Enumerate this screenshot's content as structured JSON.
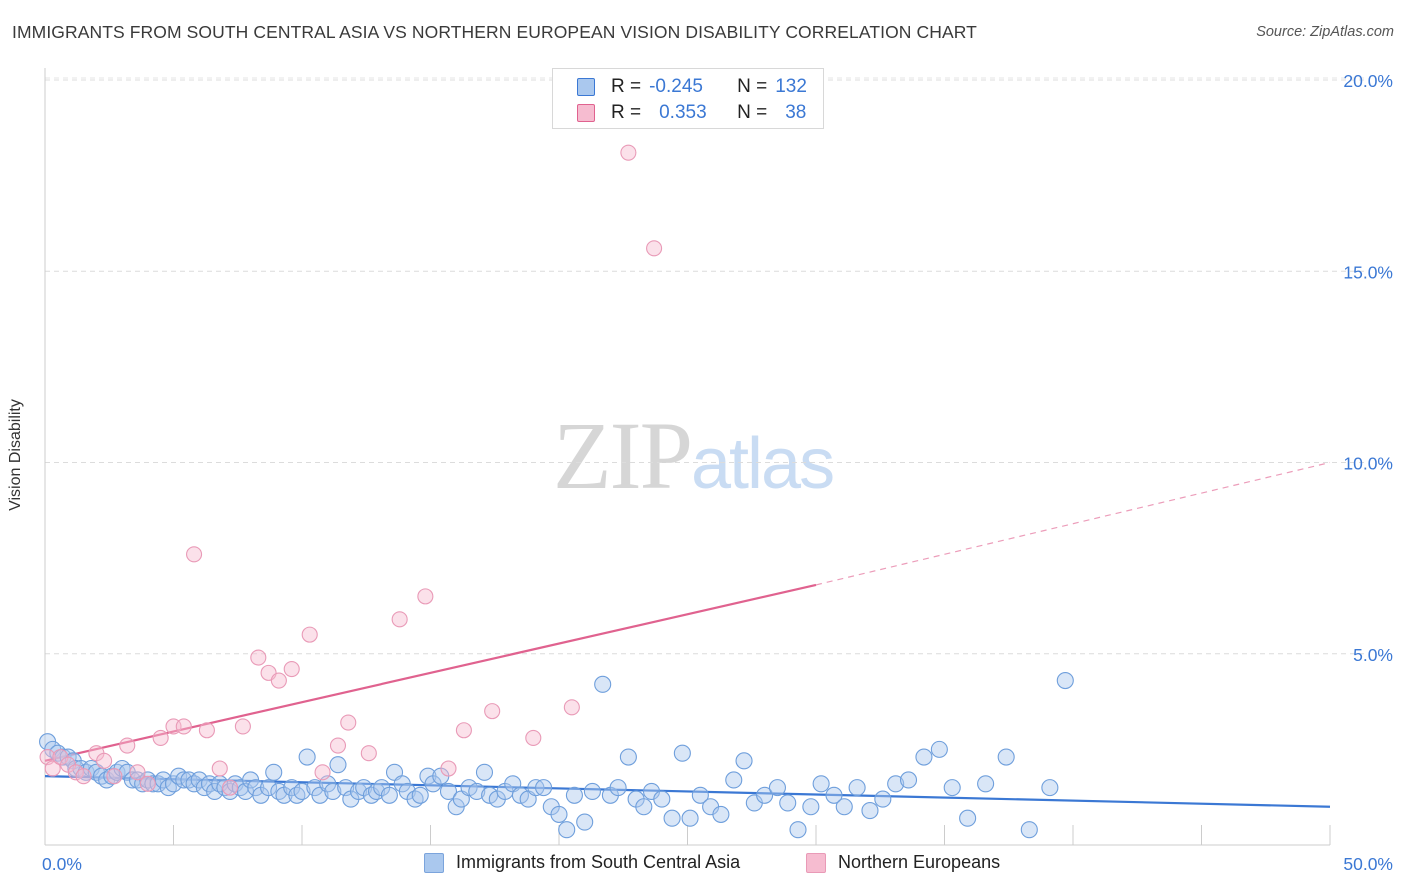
{
  "title": "IMMIGRANTS FROM SOUTH CENTRAL ASIA VS NORTHERN EUROPEAN VISION DISABILITY CORRELATION CHART",
  "source": "Source: ZipAtlas.com",
  "watermark": {
    "zip": "ZIP",
    "atlas": "atlas"
  },
  "legend_top": {
    "rows": [
      {
        "r_label": "R =",
        "r_value": "-0.245",
        "n_label": "N =",
        "n_value": "132"
      },
      {
        "r_label": "R =",
        "r_value": "0.353",
        "n_label": "N =",
        "n_value": "38"
      }
    ]
  },
  "legend_bottom": {
    "items": [
      "Immigrants from South Central Asia",
      "Northern Europeans"
    ]
  },
  "chart_data": {
    "type": "scatter",
    "ylabel": "Vision Disability",
    "xlabel": "",
    "xlim": [
      0,
      50
    ],
    "ylim": [
      0,
      21
    ],
    "x_tick_labels": [
      "0.0%",
      "50.0%"
    ],
    "y_ticks": [
      5,
      10,
      15,
      20
    ],
    "y_tick_labels": [
      "5.0%",
      "10.0%",
      "15.0%",
      "20.0%"
    ],
    "grid": true,
    "legend_placement": "bottom",
    "colors": {
      "blue": "#3b78d4",
      "blue_fill": "#aac8ee",
      "pink": "#e0628f",
      "pink_fill": "#f6bcd0",
      "tick_label": "#3b78d4"
    },
    "series": [
      {
        "name": "Immigrants from South Central Asia",
        "color": "#3b78d4",
        "trend": {
          "x": [
            0,
            50
          ],
          "y": [
            1.8,
            1.0
          ],
          "style": "solid"
        },
        "points": [
          [
            0.1,
            2.7
          ],
          [
            0.3,
            2.5
          ],
          [
            0.5,
            2.4
          ],
          [
            0.7,
            2.3
          ],
          [
            0.9,
            2.3
          ],
          [
            1.1,
            2.2
          ],
          [
            1.2,
            2.0
          ],
          [
            1.4,
            2.0
          ],
          [
            1.6,
            1.9
          ],
          [
            1.8,
            2.0
          ],
          [
            2.0,
            1.9
          ],
          [
            2.2,
            1.8
          ],
          [
            2.4,
            1.7
          ],
          [
            2.6,
            1.8
          ],
          [
            2.8,
            1.9
          ],
          [
            3.0,
            2.0
          ],
          [
            3.2,
            1.9
          ],
          [
            3.4,
            1.7
          ],
          [
            3.6,
            1.7
          ],
          [
            3.8,
            1.6
          ],
          [
            4.0,
            1.7
          ],
          [
            4.2,
            1.6
          ],
          [
            4.4,
            1.6
          ],
          [
            4.6,
            1.7
          ],
          [
            4.8,
            1.5
          ],
          [
            5.0,
            1.6
          ],
          [
            5.2,
            1.8
          ],
          [
            5.4,
            1.7
          ],
          [
            5.6,
            1.7
          ],
          [
            5.8,
            1.6
          ],
          [
            6.0,
            1.7
          ],
          [
            6.2,
            1.5
          ],
          [
            6.4,
            1.6
          ],
          [
            6.6,
            1.4
          ],
          [
            6.8,
            1.6
          ],
          [
            7.0,
            1.5
          ],
          [
            7.2,
            1.4
          ],
          [
            7.4,
            1.6
          ],
          [
            7.6,
            1.5
          ],
          [
            7.8,
            1.4
          ],
          [
            8.0,
            1.7
          ],
          [
            8.2,
            1.5
          ],
          [
            8.4,
            1.3
          ],
          [
            8.7,
            1.5
          ],
          [
            8.9,
            1.9
          ],
          [
            9.1,
            1.4
          ],
          [
            9.3,
            1.3
          ],
          [
            9.6,
            1.5
          ],
          [
            9.8,
            1.3
          ],
          [
            10.0,
            1.4
          ],
          [
            10.2,
            2.3
          ],
          [
            10.5,
            1.5
          ],
          [
            10.7,
            1.3
          ],
          [
            11.0,
            1.6
          ],
          [
            11.2,
            1.4
          ],
          [
            11.4,
            2.1
          ],
          [
            11.7,
            1.5
          ],
          [
            11.9,
            1.2
          ],
          [
            12.2,
            1.4
          ],
          [
            12.4,
            1.5
          ],
          [
            12.7,
            1.3
          ],
          [
            12.9,
            1.4
          ],
          [
            13.1,
            1.5
          ],
          [
            13.4,
            1.3
          ],
          [
            13.6,
            1.9
          ],
          [
            13.9,
            1.6
          ],
          [
            14.1,
            1.4
          ],
          [
            14.4,
            1.2
          ],
          [
            14.6,
            1.3
          ],
          [
            14.9,
            1.8
          ],
          [
            15.1,
            1.6
          ],
          [
            15.4,
            1.8
          ],
          [
            15.7,
            1.4
          ],
          [
            16.0,
            1.0
          ],
          [
            16.2,
            1.2
          ],
          [
            16.5,
            1.5
          ],
          [
            16.8,
            1.4
          ],
          [
            17.1,
            1.9
          ],
          [
            17.3,
            1.3
          ],
          [
            17.6,
            1.2
          ],
          [
            17.9,
            1.4
          ],
          [
            18.2,
            1.6
          ],
          [
            18.5,
            1.3
          ],
          [
            18.8,
            1.2
          ],
          [
            19.1,
            1.5
          ],
          [
            19.4,
            1.5
          ],
          [
            19.7,
            1.0
          ],
          [
            20.0,
            0.8
          ],
          [
            20.3,
            0.4
          ],
          [
            20.6,
            1.3
          ],
          [
            21.0,
            0.6
          ],
          [
            21.3,
            1.4
          ],
          [
            21.7,
            4.2
          ],
          [
            22.0,
            1.3
          ],
          [
            22.3,
            1.5
          ],
          [
            22.7,
            2.3
          ],
          [
            23.0,
            1.2
          ],
          [
            23.3,
            1.0
          ],
          [
            23.6,
            1.4
          ],
          [
            24.0,
            1.2
          ],
          [
            24.4,
            0.7
          ],
          [
            24.8,
            2.4
          ],
          [
            25.1,
            0.7
          ],
          [
            25.5,
            1.3
          ],
          [
            25.9,
            1.0
          ],
          [
            26.3,
            0.8
          ],
          [
            26.8,
            1.7
          ],
          [
            27.2,
            2.2
          ],
          [
            27.6,
            1.1
          ],
          [
            28.0,
            1.3
          ],
          [
            28.5,
            1.5
          ],
          [
            28.9,
            1.1
          ],
          [
            29.3,
            0.4
          ],
          [
            29.8,
            1.0
          ],
          [
            30.2,
            1.6
          ],
          [
            30.7,
            1.3
          ],
          [
            31.1,
            1.0
          ],
          [
            31.6,
            1.5
          ],
          [
            32.1,
            0.9
          ],
          [
            32.6,
            1.2
          ],
          [
            33.1,
            1.6
          ],
          [
            33.6,
            1.7
          ],
          [
            34.2,
            2.3
          ],
          [
            34.8,
            2.5
          ],
          [
            35.3,
            1.5
          ],
          [
            35.9,
            0.7
          ],
          [
            36.6,
            1.6
          ],
          [
            37.4,
            2.3
          ],
          [
            38.3,
            0.4
          ],
          [
            39.1,
            1.5
          ],
          [
            39.7,
            4.3
          ]
        ]
      },
      {
        "name": "Northern Europeans",
        "color": "#e0628f",
        "trend": {
          "x": [
            0,
            30
          ],
          "y": [
            2.2,
            6.8
          ],
          "style": "solid",
          "extension": {
            "x": [
              30,
              50
            ],
            "y": [
              6.8,
              10.0
            ],
            "style": "dashed"
          }
        },
        "points": [
          [
            0.1,
            2.3
          ],
          [
            0.3,
            2.0
          ],
          [
            0.6,
            2.3
          ],
          [
            0.9,
            2.1
          ],
          [
            1.2,
            1.9
          ],
          [
            1.5,
            1.8
          ],
          [
            2.0,
            2.4
          ],
          [
            2.3,
            2.2
          ],
          [
            2.7,
            1.8
          ],
          [
            3.2,
            2.6
          ],
          [
            3.6,
            1.9
          ],
          [
            4.0,
            1.6
          ],
          [
            4.5,
            2.8
          ],
          [
            5.0,
            3.1
          ],
          [
            5.4,
            3.1
          ],
          [
            5.8,
            7.6
          ],
          [
            6.3,
            3.0
          ],
          [
            6.8,
            2.0
          ],
          [
            7.2,
            1.5
          ],
          [
            7.7,
            3.1
          ],
          [
            8.3,
            4.9
          ],
          [
            8.7,
            4.5
          ],
          [
            9.1,
            4.3
          ],
          [
            9.6,
            4.6
          ],
          [
            10.3,
            5.5
          ],
          [
            10.8,
            1.9
          ],
          [
            11.4,
            2.6
          ],
          [
            11.8,
            3.2
          ],
          [
            12.6,
            2.4
          ],
          [
            13.8,
            5.9
          ],
          [
            14.8,
            6.5
          ],
          [
            15.7,
            2.0
          ],
          [
            16.3,
            3.0
          ],
          [
            17.4,
            3.5
          ],
          [
            19.0,
            2.8
          ],
          [
            20.5,
            3.6
          ],
          [
            22.7,
            18.1
          ],
          [
            23.7,
            15.6
          ]
        ]
      }
    ]
  }
}
